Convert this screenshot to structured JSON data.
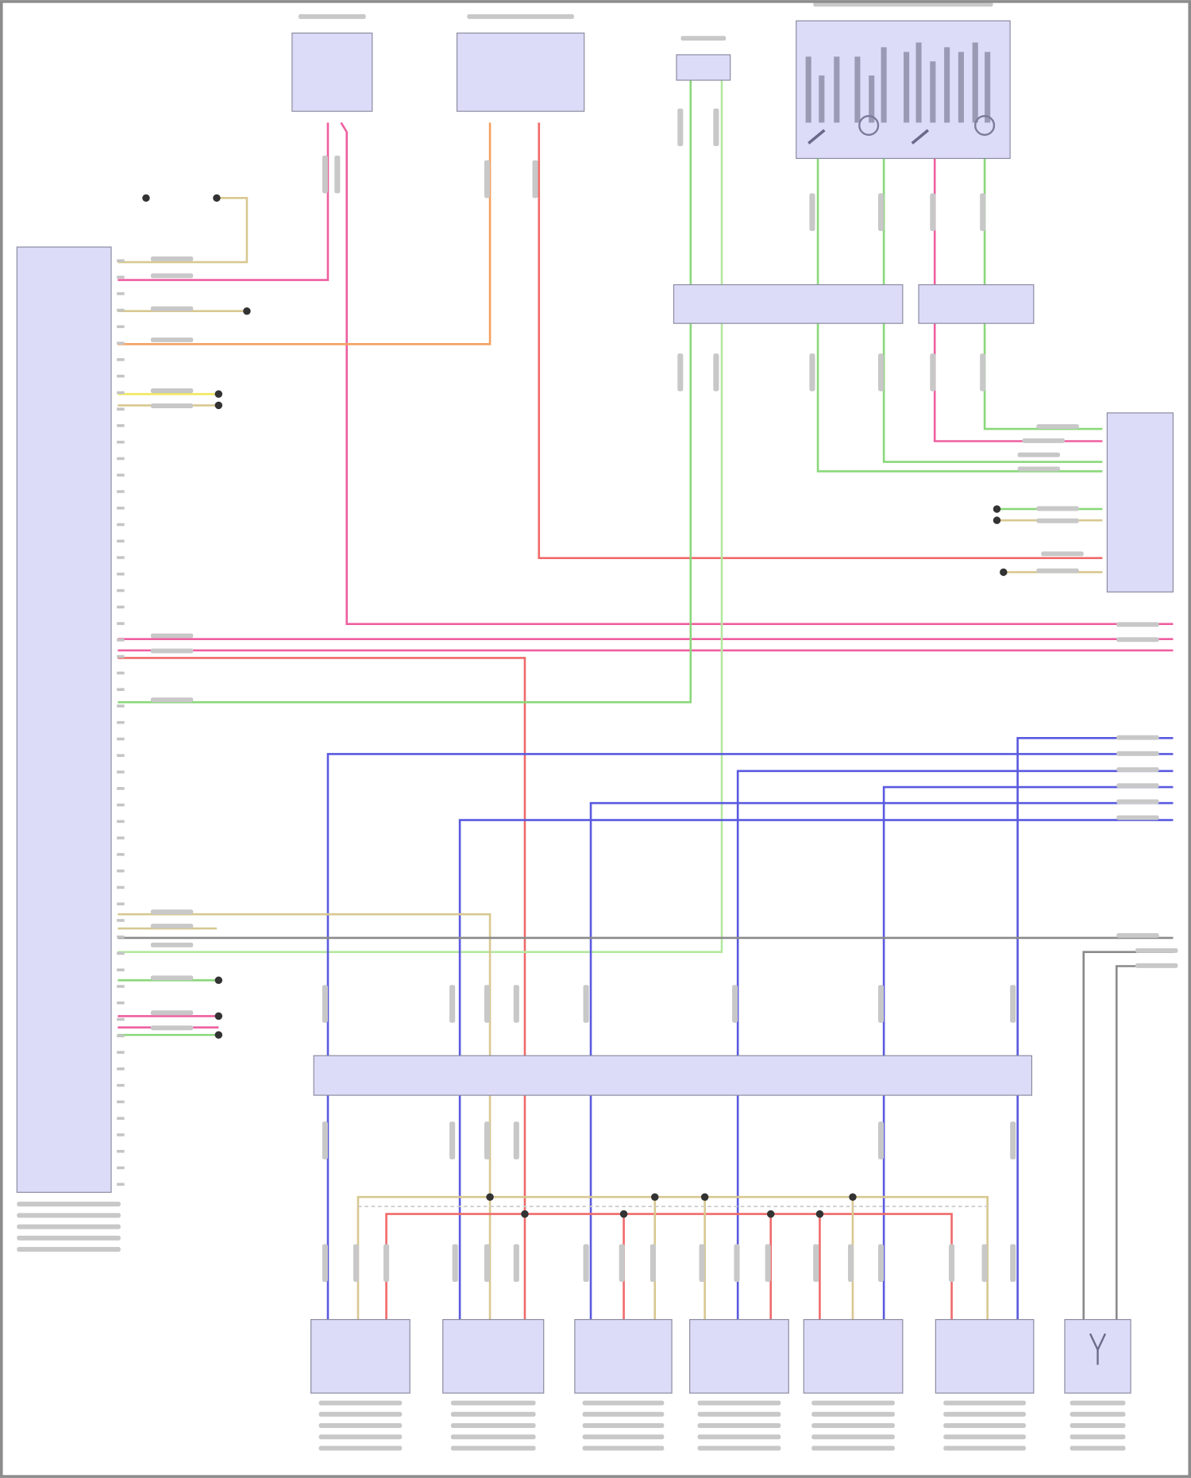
{
  "diagram": {
    "type": "wiring-diagram",
    "text_legible": false
  },
  "colors": {
    "background": "#ffffff",
    "component_fill": "#dcdcf8",
    "component_border": "#8a8aa0",
    "frame": "#8c8c8c",
    "wire_pink": "#ee5fa0",
    "wire_red": "#f06a6a",
    "wire_orange": "#f5a060",
    "wire_green": "#8ad87a",
    "wire_light_green": "#b4e8a0",
    "wire_blue": "#5a5ae0",
    "wire_tan": "#d8c890",
    "wire_yellow": "#f0e860",
    "wire_gray": "#8a8a8a",
    "splice": "#333333"
  },
  "components": [
    {
      "id": "main-control-module"
    },
    {
      "id": "relay-1"
    },
    {
      "id": "relay-2"
    },
    {
      "id": "sensor-connector-top"
    },
    {
      "id": "switch-panel"
    },
    {
      "id": "inline-connector-top-left"
    },
    {
      "id": "inline-connector-top-right"
    },
    {
      "id": "right-module"
    },
    {
      "id": "inline-connector-bottom"
    },
    {
      "id": "bottom-sensor-1"
    },
    {
      "id": "bottom-sensor-2"
    },
    {
      "id": "bottom-sensor-3"
    },
    {
      "id": "bottom-sensor-4"
    },
    {
      "id": "bottom-sensor-5"
    },
    {
      "id": "bottom-sensor-6"
    },
    {
      "id": "antenna-module"
    }
  ]
}
